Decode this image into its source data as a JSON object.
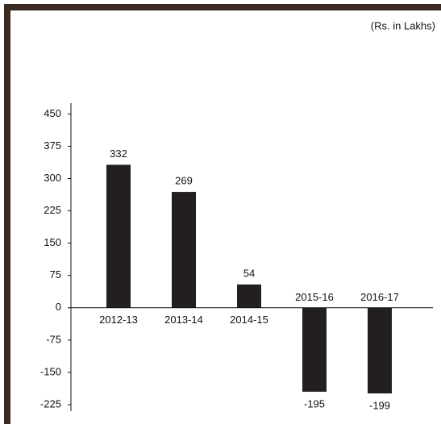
{
  "chart_data": {
    "type": "bar",
    "subtitle": "(Rs. in Lakhs)",
    "categories": [
      "2012-13",
      "2013-14",
      "2014-15",
      "2015-16",
      "2016-17"
    ],
    "values": [
      332,
      269,
      54,
      -195,
      -199
    ],
    "color": "#231f20",
    "ylim": [
      -240,
      475
    ],
    "yticks": [
      -225,
      -150,
      -75,
      0,
      75,
      150,
      225,
      300,
      375,
      450
    ]
  }
}
